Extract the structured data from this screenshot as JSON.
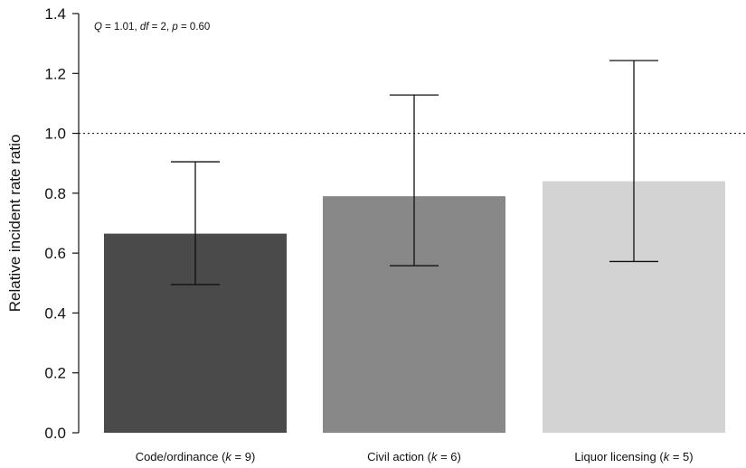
{
  "chart_data": {
    "type": "bar",
    "ylabel": "Relative incident rate ratio",
    "ylim": [
      0,
      1.4
    ],
    "yticks": [
      "0.0",
      "0.2",
      "0.4",
      "0.6",
      "0.8",
      "1.0",
      "1.2",
      "1.4"
    ],
    "reference_line": 1.0,
    "grid": false,
    "annotation": {
      "q_label": "Q",
      "q_value": " = 1.01, ",
      "df_label": "df",
      "df_value": " = 2, ",
      "p_label": "p",
      "p_value": " = 0.60"
    },
    "categories": [
      {
        "label": "Code/ordinance (",
        "k": "k",
        "k_value": " = 9)",
        "value": 0.665,
        "lower": 0.495,
        "upper": 0.905,
        "color": "#4a4a4a"
      },
      {
        "label": "Civil action (",
        "k": "k",
        "k_value": " = 6)",
        "value": 0.79,
        "lower": 0.558,
        "upper": 1.128,
        "color": "#888888"
      },
      {
        "label": "Liquor licensing (",
        "k": "k",
        "k_value": " = 5)",
        "value": 0.84,
        "lower": 0.572,
        "upper": 1.243,
        "color": "#d3d3d3"
      }
    ]
  }
}
